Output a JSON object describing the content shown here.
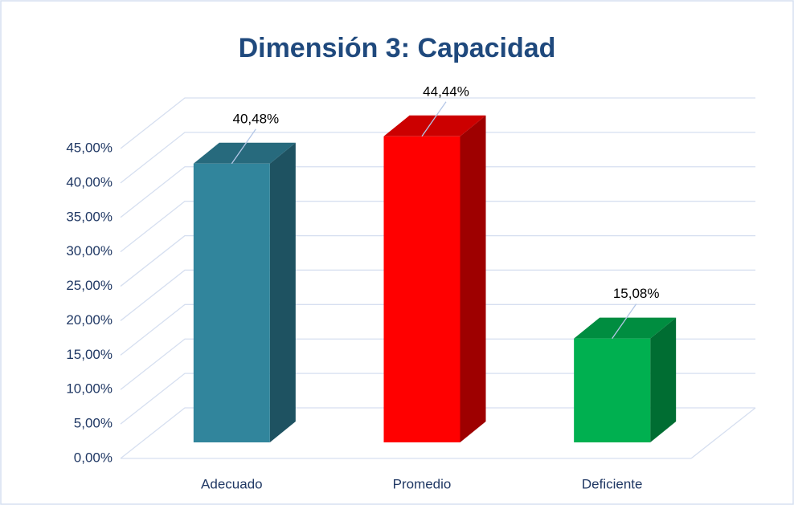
{
  "chart_data": {
    "type": "bar3d",
    "title": "Dimensión 3: Capacidad",
    "categories": [
      "Adecuado",
      "Promedio",
      "Deficiente"
    ],
    "values": [
      40.48,
      44.44,
      15.08
    ],
    "value_labels": [
      "40,48%",
      "44,44%",
      "15,08%"
    ],
    "colors": [
      "#31859c",
      "#ff0000",
      "#00b050"
    ],
    "ylim": [
      0,
      45
    ],
    "yticks": [
      {
        "value": 0,
        "label": "0,00%"
      },
      {
        "value": 5,
        "label": "5,00%"
      },
      {
        "value": 10,
        "label": "10,00%"
      },
      {
        "value": 15,
        "label": "15,00%"
      },
      {
        "value": 20,
        "label": "20,00%"
      },
      {
        "value": 25,
        "label": "25,00%"
      },
      {
        "value": 30,
        "label": "30,00%"
      },
      {
        "value": 35,
        "label": "35,00%"
      },
      {
        "value": 40,
        "label": "40,00%"
      },
      {
        "value": 45,
        "label": "45,00%"
      }
    ],
    "grid": true
  }
}
